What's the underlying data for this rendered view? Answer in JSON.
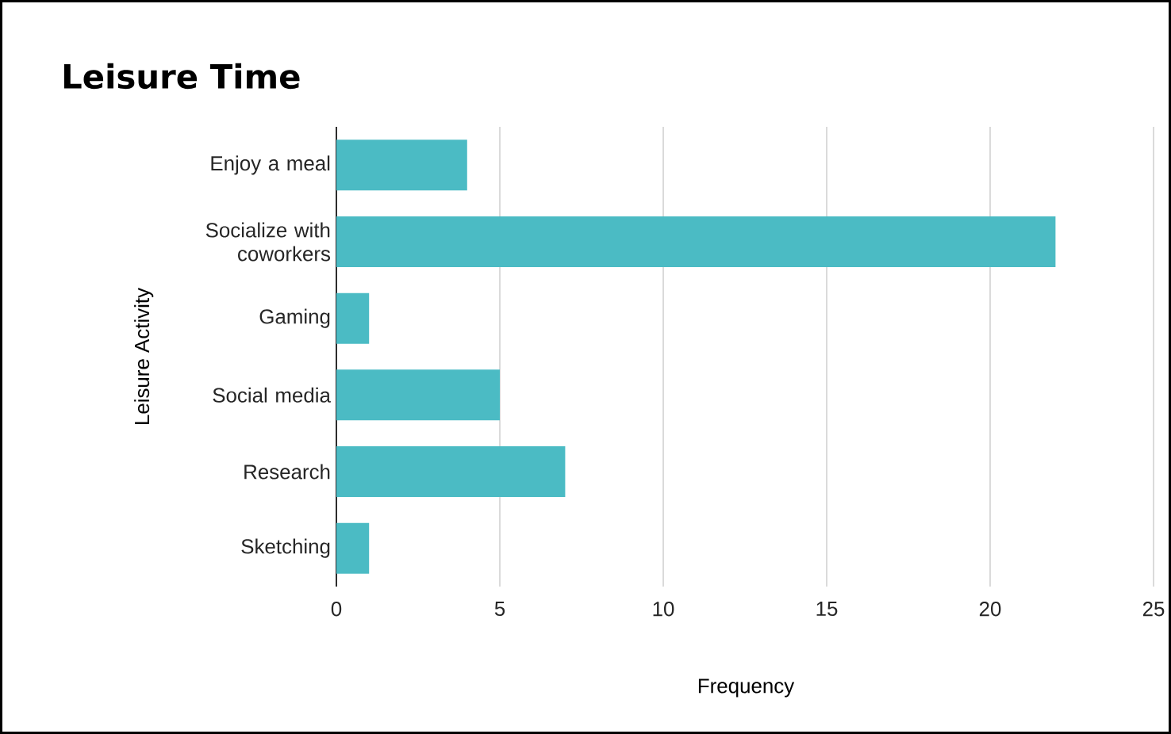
{
  "chart_data": {
    "type": "bar",
    "orientation": "horizontal",
    "title": "Leisure Time",
    "xlabel": "Frequency",
    "ylabel": "Leisure Activity",
    "categories": [
      "Enjoy a meal",
      "Socialize with coworkers",
      "Gaming",
      "Social media",
      "Research",
      "Sketching"
    ],
    "values": [
      4,
      22,
      1,
      5,
      7,
      1
    ],
    "color": "#4bbbc4",
    "xlim": [
      0,
      25
    ],
    "xticks": [
      0,
      5,
      10,
      15,
      20,
      25
    ],
    "grid": "x"
  }
}
